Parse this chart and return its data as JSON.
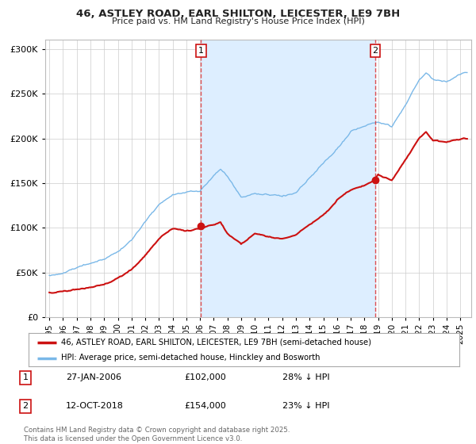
{
  "title_line1": "46, ASTLEY ROAD, EARL SHILTON, LEICESTER, LE9 7BH",
  "title_line2": "Price paid vs. HM Land Registry's House Price Index (HPI)",
  "ylim": [
    0,
    310000
  ],
  "yticks": [
    0,
    50000,
    100000,
    150000,
    200000,
    250000,
    300000
  ],
  "background_color": "#ffffff",
  "plot_bg_color": "#ffffff",
  "grid_color": "#cccccc",
  "hpi_color": "#7ab8e8",
  "hpi_fill_color": "#ddeeff",
  "price_color": "#cc1111",
  "shade_color": "#ddeeff",
  "marker1_x": 2006.08,
  "marker1_price": 102000,
  "marker2_x": 2018.79,
  "marker2_price": 154000,
  "legend_label1": "46, ASTLEY ROAD, EARL SHILTON, LEICESTER, LE9 7BH (semi-detached house)",
  "legend_label2": "HPI: Average price, semi-detached house, Hinckley and Bosworth",
  "footer": "Contains HM Land Registry data © Crown copyright and database right 2025.\nThis data is licensed under the Open Government Licence v3.0.",
  "hpi_key": [
    [
      1995,
      47000
    ],
    [
      1996,
      50000
    ],
    [
      1997,
      55000
    ],
    [
      1998,
      60000
    ],
    [
      1999,
      66000
    ],
    [
      2000,
      75000
    ],
    [
      2001,
      88000
    ],
    [
      2002,
      108000
    ],
    [
      2003,
      128000
    ],
    [
      2004,
      138000
    ],
    [
      2005,
      140000
    ],
    [
      2006,
      142000
    ],
    [
      2007,
      158000
    ],
    [
      2007.5,
      165000
    ],
    [
      2008,
      155000
    ],
    [
      2009,
      130000
    ],
    [
      2010,
      133000
    ],
    [
      2011,
      130000
    ],
    [
      2012,
      128000
    ],
    [
      2013,
      133000
    ],
    [
      2014,
      148000
    ],
    [
      2015,
      163000
    ],
    [
      2016,
      180000
    ],
    [
      2017,
      196000
    ],
    [
      2018,
      205000
    ],
    [
      2019,
      210000
    ],
    [
      2020,
      205000
    ],
    [
      2021,
      228000
    ],
    [
      2022,
      258000
    ],
    [
      2022.5,
      265000
    ],
    [
      2023,
      258000
    ],
    [
      2024,
      255000
    ],
    [
      2025.3,
      265000
    ]
  ],
  "price_key": [
    [
      1995,
      28000
    ],
    [
      1996,
      30000
    ],
    [
      1997,
      33000
    ],
    [
      1998,
      36000
    ],
    [
      1999,
      40000
    ],
    [
      2000,
      47000
    ],
    [
      2001,
      57000
    ],
    [
      2002,
      72000
    ],
    [
      2003,
      90000
    ],
    [
      2004,
      100000
    ],
    [
      2005,
      99000
    ],
    [
      2006.08,
      102000
    ],
    [
      2007,
      108000
    ],
    [
      2007.5,
      112000
    ],
    [
      2008,
      100000
    ],
    [
      2009,
      88000
    ],
    [
      2009.5,
      93000
    ],
    [
      2010,
      98000
    ],
    [
      2011,
      95000
    ],
    [
      2012,
      93000
    ],
    [
      2013,
      97000
    ],
    [
      2014,
      107000
    ],
    [
      2015,
      118000
    ],
    [
      2016,
      132000
    ],
    [
      2017,
      142000
    ],
    [
      2018.79,
      154000
    ],
    [
      2019,
      160000
    ],
    [
      2020,
      156000
    ],
    [
      2021,
      178000
    ],
    [
      2022,
      202000
    ],
    [
      2022.5,
      207000
    ],
    [
      2023,
      198000
    ],
    [
      2024,
      195000
    ],
    [
      2025.3,
      200000
    ]
  ],
  "xmin": 1994.7,
  "xmax": 2025.8,
  "xticks": [
    1995,
    1996,
    1997,
    1998,
    1999,
    2000,
    2001,
    2002,
    2003,
    2004,
    2005,
    2006,
    2007,
    2008,
    2009,
    2010,
    2011,
    2012,
    2013,
    2014,
    2015,
    2016,
    2017,
    2018,
    2019,
    2020,
    2021,
    2022,
    2023,
    2024,
    2025
  ]
}
